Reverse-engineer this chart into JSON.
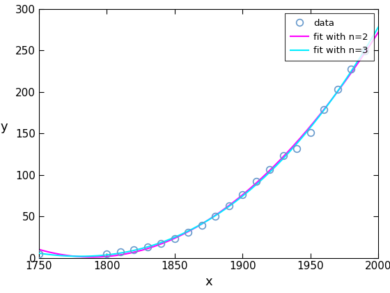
{
  "cdata_x": [
    1750,
    1800,
    1810,
    1820,
    1830,
    1840,
    1850,
    1860,
    1870,
    1880,
    1890,
    1900,
    1910,
    1920,
    1930,
    1940,
    1950,
    1960,
    1970,
    1980,
    1990
  ],
  "cdata_y": [
    5,
    5,
    7,
    10,
    13,
    17,
    23,
    31,
    39,
    50,
    63,
    76,
    92,
    106,
    123,
    132,
    151,
    179,
    203,
    227,
    249
  ],
  "xlim": [
    1750,
    2000
  ],
  "ylim": [
    0,
    300
  ],
  "xlabel": "x",
  "ylabel": "y",
  "legend_labels": [
    "data",
    "fit with n=2",
    "fit with n=3"
  ],
  "marker_color": "#6699cc",
  "fit2_color": "#ff00ff",
  "fit3_color": "#00eeff",
  "marker_size": 7,
  "line_width": 1.5,
  "bg_color": "#ffffff",
  "yticks": [
    0,
    50,
    100,
    150,
    200,
    250,
    300
  ],
  "xticks": [
    1750,
    1800,
    1850,
    1900,
    1950,
    2000
  ],
  "tick_fontsize": 11,
  "label_fontsize": 13
}
